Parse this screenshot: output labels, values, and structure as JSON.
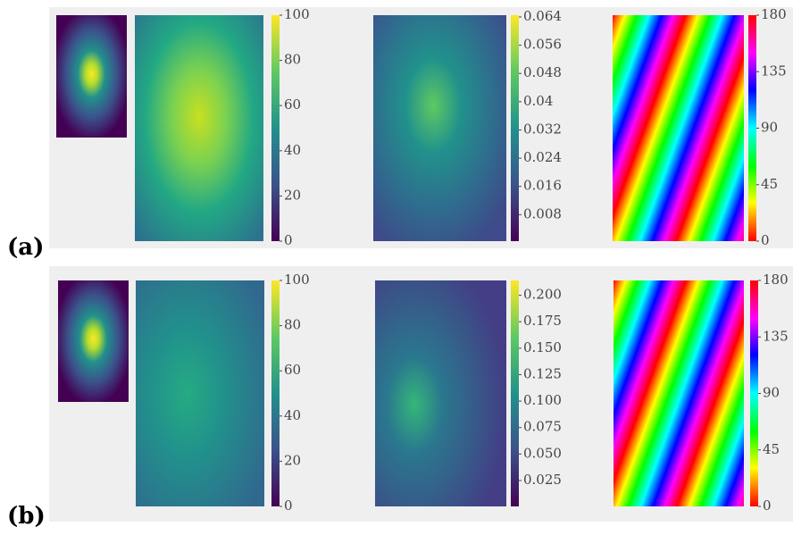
{
  "panels": [
    {
      "label": "(a)",
      "colorbars": [
        {
          "colormap": "viridis",
          "lim": [
            0,
            100
          ],
          "ticks": [
            0,
            20,
            40,
            60,
            80,
            100
          ]
        },
        {
          "colormap": "viridis",
          "lim": [
            0.0005,
            0.0645
          ],
          "ticks": [
            0.008,
            0.016,
            0.024,
            0.032,
            0.04,
            0.048,
            0.056,
            0.064
          ]
        },
        {
          "colormap": "hsv",
          "lim": [
            0,
            180
          ],
          "ticks": [
            0,
            45,
            90,
            135,
            180
          ]
        }
      ]
    },
    {
      "label": "(b)",
      "colorbars": [
        {
          "colormap": "viridis",
          "lim": [
            0,
            100
          ],
          "ticks": [
            0,
            20,
            40,
            60,
            80,
            100
          ]
        },
        {
          "colormap": "viridis",
          "lim": [
            0.0005,
            0.214
          ],
          "ticks": [
            0.025,
            {
              "value": 0.05,
              "label": "0.050"
            },
            0.075,
            {
              "value": 0.1,
              "label": "0.100"
            },
            0.125,
            {
              "value": 0.15,
              "label": "0.150"
            },
            0.175,
            {
              "value": 0.2,
              "label": "0.200"
            }
          ]
        },
        {
          "colormap": "hsv",
          "lim": [
            0,
            180
          ],
          "ticks": [
            0,
            45,
            90,
            135,
            180
          ]
        }
      ]
    }
  ]
}
